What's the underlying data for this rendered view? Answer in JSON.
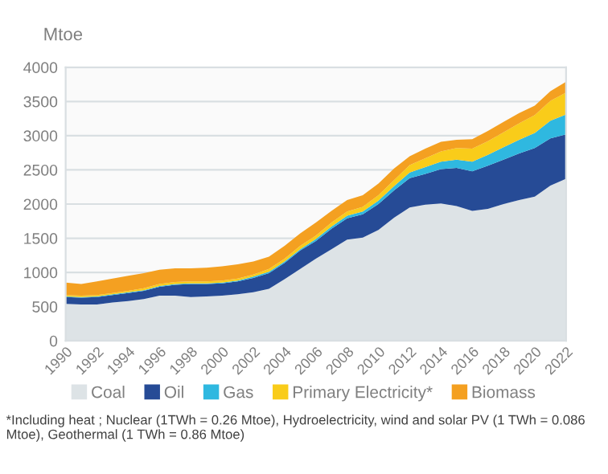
{
  "chart_data": {
    "type": "area",
    "stacked": true,
    "ylabel": "Mtoe",
    "x": [
      1990,
      1991,
      1992,
      1993,
      1994,
      1995,
      1996,
      1997,
      1998,
      1999,
      2000,
      2001,
      2002,
      2003,
      2004,
      2005,
      2006,
      2007,
      2008,
      2009,
      2010,
      2011,
      2012,
      2013,
      2014,
      2015,
      2016,
      2017,
      2018,
      2019,
      2020,
      2021,
      2022
    ],
    "series": [
      {
        "name": "Coal",
        "color": "#dde3e6",
        "values": [
          540,
          530,
          530,
          560,
          580,
          610,
          660,
          660,
          640,
          650,
          660,
          680,
          710,
          760,
          900,
          1050,
          1200,
          1340,
          1480,
          1510,
          1620,
          1800,
          1950,
          1990,
          2010,
          1970,
          1900,
          1930,
          2000,
          2060,
          2110,
          2270,
          2370
        ]
      },
      {
        "name": "Oil",
        "color": "#264b96",
        "values": [
          100,
          100,
          110,
          110,
          120,
          120,
          130,
          160,
          190,
          180,
          180,
          190,
          210,
          230,
          240,
          270,
          260,
          300,
          310,
          340,
          380,
          400,
          430,
          450,
          500,
          560,
          580,
          630,
          650,
          680,
          710,
          690,
          650
        ]
      },
      {
        "name": "Gas",
        "color": "#2fb8e0",
        "values": [
          10,
          10,
          10,
          10,
          10,
          10,
          10,
          10,
          10,
          10,
          10,
          10,
          20,
          20,
          20,
          20,
          30,
          30,
          40,
          40,
          50,
          60,
          80,
          100,
          110,
          120,
          140,
          160,
          180,
          200,
          220,
          260,
          290
        ]
      },
      {
        "name": "Primary Electricity*",
        "color": "#f9cc1a",
        "values": [
          20,
          20,
          20,
          20,
          20,
          30,
          30,
          30,
          30,
          30,
          30,
          30,
          30,
          40,
          40,
          50,
          50,
          60,
          60,
          70,
          80,
          90,
          110,
          130,
          150,
          170,
          190,
          200,
          220,
          240,
          260,
          290,
          320
        ]
      },
      {
        "name": "Biomass",
        "color": "#f4a021",
        "values": [
          180,
          170,
          200,
          210,
          220,
          220,
          210,
          200,
          190,
          200,
          210,
          210,
          190,
          180,
          190,
          180,
          190,
          170,
          170,
          170,
          170,
          170,
          130,
          140,
          140,
          120,
          140,
          150,
          150,
          150,
          140,
          140,
          160
        ]
      }
    ],
    "xlim": [
      1990,
      2022
    ],
    "xticks": [
      1990,
      1992,
      1994,
      1996,
      1998,
      2000,
      2002,
      2004,
      2006,
      2008,
      2010,
      2012,
      2014,
      2016,
      2018,
      2020,
      2022
    ],
    "ylim": [
      0,
      4000
    ],
    "yticks": [
      0,
      500,
      1000,
      1500,
      2000,
      2500,
      3000,
      3500,
      4000
    ],
    "grid": "y",
    "legend": "bottom",
    "annotations": [
      "*Including heat ; Nuclear (1TWh = 0.26 Mtoe), Hydroelectricity, wind and solar PV (1 TWh = 0.086 Mtoe), Geothermal (1 TWh = 0.86 Mtoe)"
    ]
  }
}
